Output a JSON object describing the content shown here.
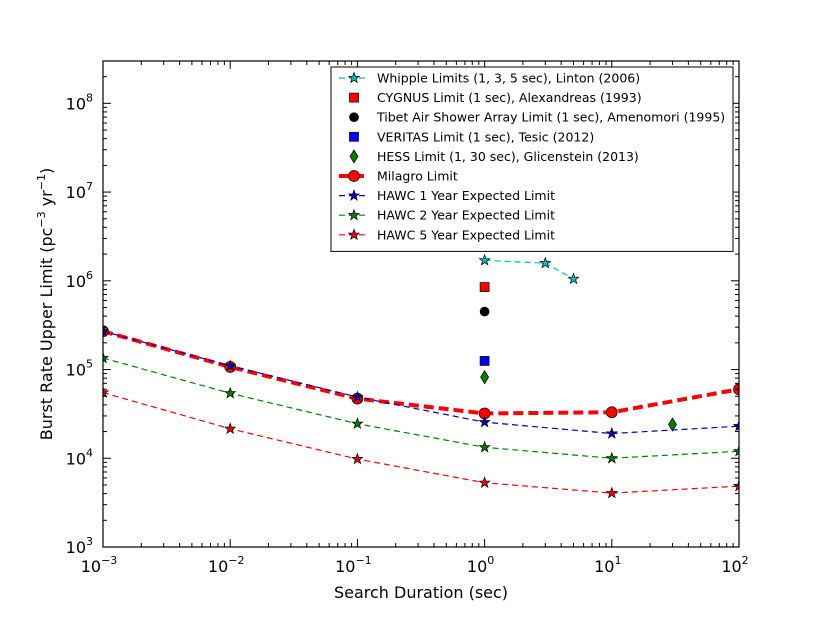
{
  "chart_data": {
    "type": "line",
    "title": "",
    "xlabel": "Search Duration (sec)",
    "ylabel": {
      "prefix": "Burst Rate Upper Limit (pc",
      "exp1": "−3",
      "middle": " yr",
      "exp2": "−1",
      "suffix": ")"
    },
    "xscale": "log",
    "yscale": "log",
    "xlim": [
      0.001,
      100
    ],
    "ylim": [
      1000,
      300000000
    ],
    "legend_position": "top-right",
    "x_ticks": [
      {
        "value": 0.001,
        "base": "10",
        "exp": "-3"
      },
      {
        "value": 0.01,
        "base": "10",
        "exp": "-2"
      },
      {
        "value": 0.1,
        "base": "10",
        "exp": "-1"
      },
      {
        "value": 1,
        "base": "10",
        "exp": "0"
      },
      {
        "value": 10,
        "base": "10",
        "exp": "1"
      },
      {
        "value": 100,
        "base": "10",
        "exp": "2"
      }
    ],
    "y_ticks": [
      {
        "value": 1000,
        "base": "10",
        "exp": "3"
      },
      {
        "value": 10000,
        "base": "10",
        "exp": "4"
      },
      {
        "value": 100000,
        "base": "10",
        "exp": "5"
      },
      {
        "value": 1000000,
        "base": "10",
        "exp": "6"
      },
      {
        "value": 10000000,
        "base": "10",
        "exp": "7"
      },
      {
        "value": 100000000,
        "base": "10",
        "exp": "8"
      }
    ],
    "series": [
      {
        "name": "Whipple Limits (1, 3, 5 sec), Linton (2006)",
        "color": "#00bfbf",
        "line": "dashed",
        "marker": "star",
        "x": [
          1,
          3,
          5
        ],
        "y": [
          1700000,
          1580000,
          1050000
        ]
      },
      {
        "name": "CYGNUS Limit (1 sec), Alexandreas (1993)",
        "color": "#ff0000",
        "line": "none",
        "marker": "square",
        "x": [
          1
        ],
        "y": [
          850000
        ]
      },
      {
        "name": "Tibet Air Shower Array Limit (1 sec), Amenomori (1995)",
        "color": "#000000",
        "line": "none",
        "marker": "circle",
        "x": [
          1
        ],
        "y": [
          450000
        ]
      },
      {
        "name": "VERITAS Limit (1 sec), Tesic (2012)",
        "color": "#0000ff",
        "line": "none",
        "marker": "square",
        "x": [
          1
        ],
        "y": [
          125000
        ]
      },
      {
        "name": "HESS Limit (1, 30 sec), Glicenstein (2013)",
        "color": "#008000",
        "line": "none",
        "marker": "diamond",
        "x": [
          1,
          30
        ],
        "y": [
          82000,
          24000
        ]
      },
      {
        "name": "Milagro Limit",
        "color": "#ff0000",
        "line": "thick-dashed",
        "marker": "circle",
        "x": [
          0.001,
          0.01,
          0.1,
          1,
          10,
          100
        ],
        "y": [
          270000,
          107000,
          47000,
          32000,
          33000,
          60000
        ]
      },
      {
        "name": "HAWC 1 Year Expected Limit",
        "color": "#0000bf",
        "line": "dashed",
        "marker": "star",
        "x": [
          0.001,
          0.01,
          0.1,
          1,
          10,
          100
        ],
        "y": [
          270000,
          110000,
          49000,
          25500,
          19000,
          23000
        ]
      },
      {
        "name": "HAWC 2 Year Expected Limit",
        "color": "#007f00",
        "line": "dashed",
        "marker": "star",
        "x": [
          0.001,
          0.01,
          0.1,
          1,
          10,
          100
        ],
        "y": [
          135000,
          54000,
          24500,
          13300,
          10000,
          12000
        ]
      },
      {
        "name": "HAWC 5 Year Expected Limit",
        "color": "#ff0000",
        "line": "dashed",
        "marker": "star",
        "x": [
          0.001,
          0.01,
          0.1,
          1,
          10,
          100
        ],
        "y": [
          55000,
          21500,
          9800,
          5300,
          4050,
          4850
        ]
      }
    ]
  }
}
